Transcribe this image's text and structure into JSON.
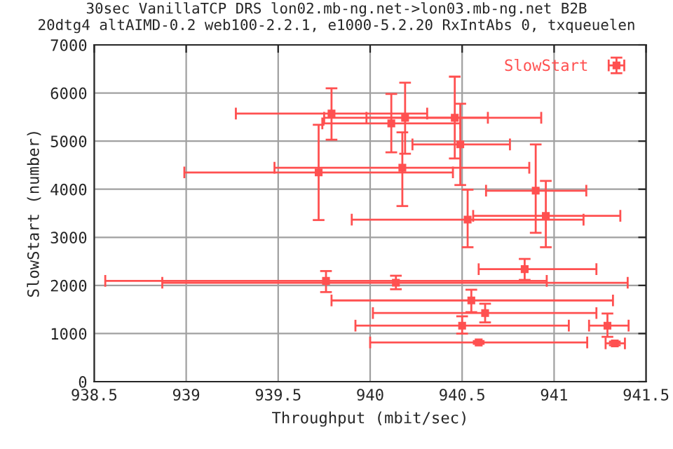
{
  "chart_data": {
    "type": "scatter",
    "title": "30sec VanillaTCP DRS lon02.mb-ng.net->lon03.mb-ng.net B2B\n20dtg4 altAIMD-0.2 web100-2.2.1, e1000-5.2.20 RxIntAbs 0, txqueuelen",
    "xlabel": "Throughput (mbit/sec)",
    "ylabel": "SlowStart (number)",
    "xlim": [
      938.5,
      941.5
    ],
    "xticks": [
      938.5,
      939,
      939.5,
      940,
      940.5,
      941,
      941.5
    ],
    "ylim": [
      0,
      7000
    ],
    "yticks": [
      0,
      1000,
      2000,
      3000,
      4000,
      5000,
      6000,
      7000
    ],
    "grid": true,
    "legend": "top right",
    "marker": "square",
    "series": [
      {
        "name": "SlowStart",
        "color": "#ff5050",
        "x": [
          939.79,
          940.115,
          940.19,
          940.46,
          940.49,
          940.175,
          939.72,
          940.9,
          940.955,
          940.53,
          940.84,
          939.76,
          940.14,
          940.55,
          940.625,
          940.5,
          941.29,
          940.59,
          941.33
        ],
        "values": [
          5573,
          5369,
          5485,
          5485,
          4932,
          4446,
          4349,
          3970,
          3446,
          3368,
          2338,
          2095,
          2056,
          1688,
          1426,
          1164,
          1164,
          815,
          795
        ],
        "errors": [
          [
            5029,
            6097
          ],
          [
            4767,
            5980
          ],
          [
            4737,
            6213
          ],
          [
            4640,
            6340
          ],
          [
            4087,
            5777
          ],
          [
            3650,
            5184
          ],
          [
            3359,
            5340
          ],
          [
            3094,
            4932
          ],
          [
            2794,
            4174
          ],
          [
            2794,
            3990
          ],
          [
            2115,
            2551
          ],
          [
            1862,
            2299
          ],
          [
            1921,
            2202
          ],
          [
            1445,
            1911
          ],
          [
            1232,
            1620
          ],
          [
            999,
            1358
          ],
          [
            931,
            1416
          ],
          [
            786,
            844
          ],
          [
            757,
            834
          ]
        ],
        "xerrors": [
          [
            939.27,
            940.31
          ],
          [
            939.74,
            940.49
          ],
          [
            939.98,
            940.64
          ],
          [
            939.75,
            940.93
          ],
          [
            940.23,
            940.76
          ],
          [
            939.48,
            940.865
          ],
          [
            938.99,
            940.45
          ],
          [
            940.63,
            941.175
          ],
          [
            940.56,
            941.36
          ],
          [
            939.9,
            941.16
          ],
          [
            940.59,
            941.23
          ],
          [
            938.56,
            940.96
          ],
          [
            938.87,
            941.4
          ],
          [
            939.79,
            941.32
          ],
          [
            940.015,
            941.23
          ],
          [
            939.92,
            941.08
          ],
          [
            941.19,
            941.405
          ],
          [
            940.0,
            941.18
          ],
          [
            941.28,
            941.385
          ]
        ]
      }
    ]
  }
}
